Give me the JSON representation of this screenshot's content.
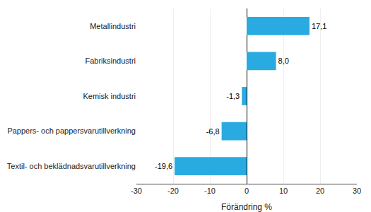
{
  "chart_data": {
    "type": "bar",
    "orientation": "horizontal",
    "categories": [
      "Textil- och beklädnadsvarutillverkning",
      "Pappers- och pappersvarutillverkning",
      "Kemisk industri",
      "Fabriksindustri",
      "Metallindustri"
    ],
    "values": [
      -19.6,
      -6.8,
      -1.3,
      8.0,
      17.1
    ],
    "value_labels": [
      "-19,6",
      "-6,8",
      "-1,3",
      "8,0",
      "17,1"
    ],
    "data_labels": true,
    "color": "#29abe2",
    "xlabel": "Förändring %",
    "xlim": [
      -30,
      30
    ],
    "xticks": [
      -30,
      -20,
      -10,
      0,
      10,
      20,
      30
    ],
    "grid": true
  }
}
